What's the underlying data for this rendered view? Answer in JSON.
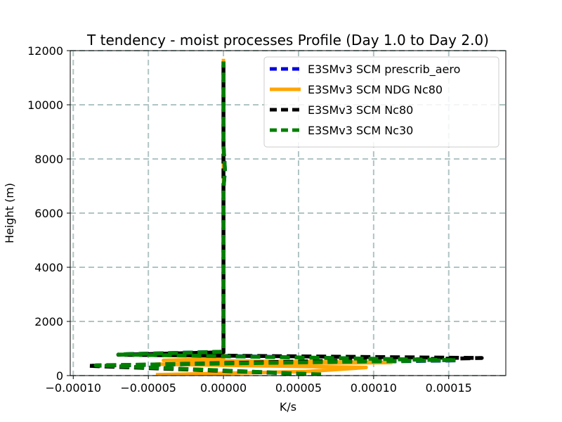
{
  "chart_data": {
    "type": "line",
    "title": "T tendency - moist processes Profile (Day 1.0 to Day 2.0)",
    "xlabel": "K/s",
    "ylabel": "Height (m)",
    "xlim": [
      -0.000102,
      0.000188
    ],
    "ylim": [
      0,
      12000
    ],
    "xticks": [
      {
        "value": -0.0001,
        "label": "−0.00010"
      },
      {
        "value": -5e-05,
        "label": "−0.00005"
      },
      {
        "value": 0.0,
        "label": "0.00000"
      },
      {
        "value": 5e-05,
        "label": "0.00005"
      },
      {
        "value": 0.0001,
        "label": "0.00010"
      },
      {
        "value": 0.00015,
        "label": "0.00015"
      }
    ],
    "yticks": [
      {
        "value": 0,
        "label": "0"
      },
      {
        "value": 2000,
        "label": "2000"
      },
      {
        "value": 4000,
        "label": "4000"
      },
      {
        "value": 6000,
        "label": "6000"
      },
      {
        "value": 8000,
        "label": "8000"
      },
      {
        "value": 10000,
        "label": "10000"
      },
      {
        "value": 12000,
        "label": "12000"
      }
    ],
    "grid": true,
    "legend_position": "top-right",
    "series": [
      {
        "name": "E3SMv3 SCM prescrib_aero",
        "color": "#0000dd",
        "dash": "dashed",
        "points": [
          {
            "x": 6.5e-05,
            "y": 40
          },
          {
            "x": -8.5e-05,
            "y": 370
          },
          {
            "x": 0.000155,
            "y": 560
          },
          {
            "x": -6.5e-05,
            "y": 790
          },
          {
            "x": 0.0,
            "y": 880
          },
          {
            "x": 0.0,
            "y": 2000
          },
          {
            "x": 0.0,
            "y": 6900
          },
          {
            "x": 1e-06,
            "y": 7600
          },
          {
            "x": 0.0,
            "y": 8500
          },
          {
            "x": 0.0,
            "y": 11600
          }
        ]
      },
      {
        "name": "E3SMv3 SCM NDG Nc80",
        "color": "#ffa500",
        "dash": "solid",
        "points": [
          {
            "x": -4.5e-05,
            "y": 30
          },
          {
            "x": 5.5e-05,
            "y": 150
          },
          {
            "x": 9.5e-05,
            "y": 300
          },
          {
            "x": -4.5e-05,
            "y": 420
          },
          {
            "x": 0.000112,
            "y": 480
          },
          {
            "x": -4e-05,
            "y": 560
          },
          {
            "x": 0.0,
            "y": 620
          },
          {
            "x": 0.0,
            "y": 2000
          },
          {
            "x": 0.0,
            "y": 11700
          }
        ]
      },
      {
        "name": "E3SMv3 SCM Nc80",
        "color": "#000000",
        "dash": "dashed",
        "points": [
          {
            "x": 5.5e-05,
            "y": 60
          },
          {
            "x": -9e-05,
            "y": 360
          },
          {
            "x": 0.000172,
            "y": 650
          },
          {
            "x": -7e-05,
            "y": 770
          },
          {
            "x": 0.0,
            "y": 860
          },
          {
            "x": 0.0,
            "y": 2000
          },
          {
            "x": 0.0,
            "y": 11600
          }
        ]
      },
      {
        "name": "E3SMv3 SCM Nc30",
        "color": "#008000",
        "dash": "dashed",
        "points": [
          {
            "x": 6.5e-05,
            "y": 40
          },
          {
            "x": -8.5e-05,
            "y": 380
          },
          {
            "x": 0.000155,
            "y": 570
          },
          {
            "x": -7e-05,
            "y": 780
          },
          {
            "x": 0.0,
            "y": 880
          },
          {
            "x": 0.0,
            "y": 2000
          },
          {
            "x": 0.0,
            "y": 6900
          },
          {
            "x": 1e-06,
            "y": 7600
          },
          {
            "x": 0.0,
            "y": 8500
          },
          {
            "x": 0.0,
            "y": 11600
          }
        ]
      }
    ]
  }
}
